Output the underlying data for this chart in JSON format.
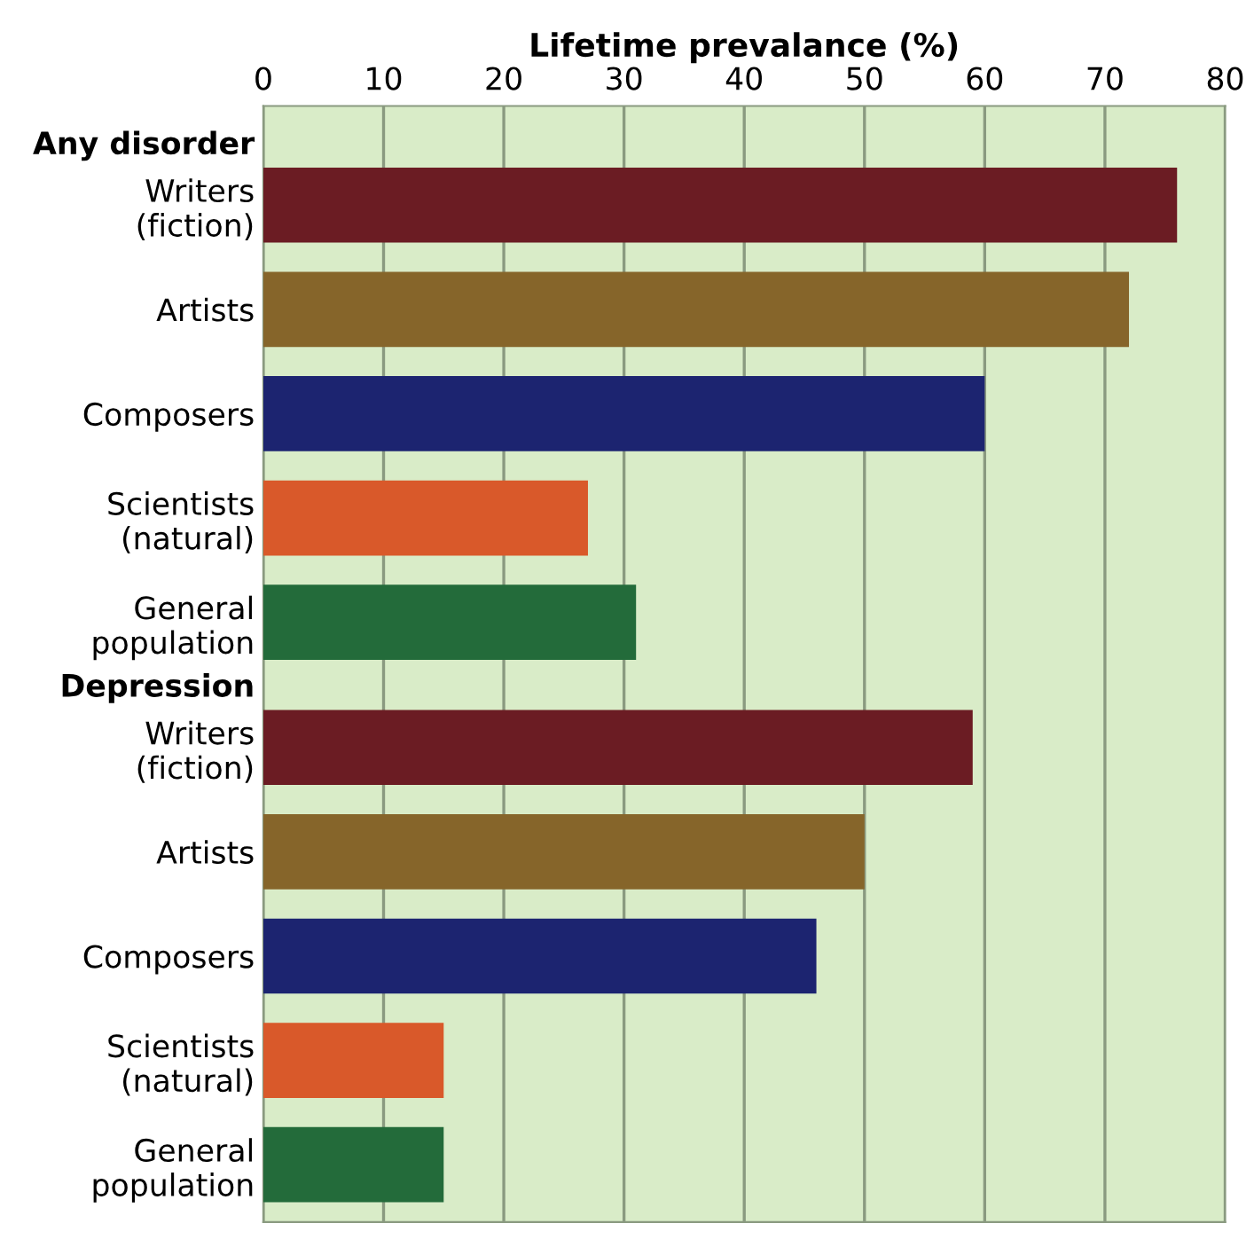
{
  "chart_data": {
    "type": "bar",
    "orientation": "horizontal",
    "xlabel": "Lifetime prevalance (%)",
    "categories": [
      "Any disorder",
      "Writers\n(fiction)",
      "Artists",
      "Composers",
      "Scientists\n(natural)",
      "General\npopulation",
      "Depression",
      "Writers\n(fiction)",
      "Artists",
      "Composers",
      "Scientists\n(natural)",
      "General\npopulation"
    ],
    "values": [
      null,
      76,
      72,
      60,
      27,
      31,
      null,
      59,
      50,
      46,
      15,
      15
    ],
    "colors": [
      null,
      "#6b1c23",
      "#86652a",
      "#1c2470",
      "#d9592a",
      "#236b3a",
      null,
      "#6b1c23",
      "#86652a",
      "#1c2470",
      "#d9592a",
      "#236b3a"
    ],
    "xlim": [
      0,
      80
    ],
    "xticks": [
      0,
      10,
      20,
      30,
      40,
      50,
      60,
      70,
      80
    ],
    "grid": "x",
    "legend": false
  }
}
